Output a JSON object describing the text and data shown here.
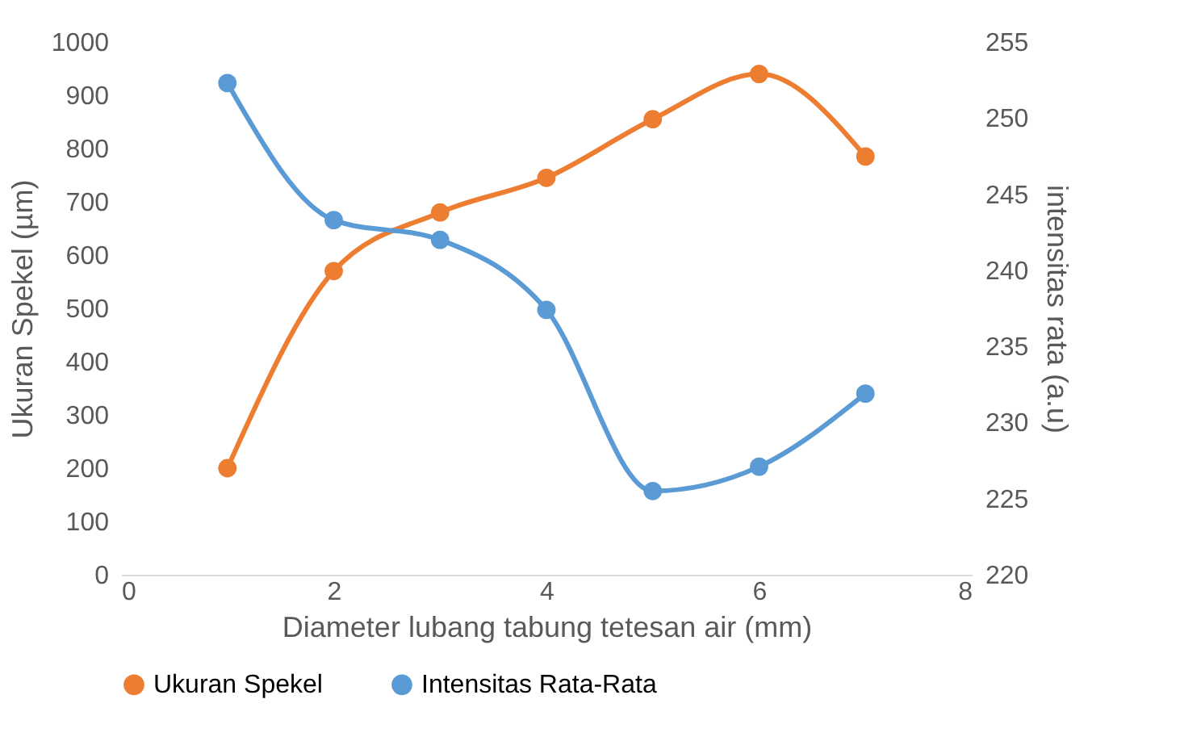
{
  "chart_data": {
    "type": "line",
    "xlabel": "Diameter lubang tabung tetesan air (mm)",
    "ylabel": "Ukuran Spekel (µm)",
    "y2label": "intensitas rata (a.u)",
    "x": [
      1,
      2,
      3,
      4,
      5,
      6,
      7
    ],
    "series": [
      {
        "name": "Ukuran Spekel",
        "color": "#ed7d31",
        "values": [
          200,
          570,
          680,
          745,
          855,
          940,
          785
        ]
      },
      {
        "name": "Intensitas Rata-Rata",
        "color": "#5b9bd5",
        "axis": "y2",
        "values": [
          252.3,
          243.3,
          242.0,
          237.4,
          225.5,
          227.1,
          231.9
        ]
      }
    ],
    "xlim": [
      0,
      8
    ],
    "xticks": [
      0,
      2,
      4,
      6,
      8
    ],
    "ylim": [
      0,
      1000
    ],
    "yticks": [
      0,
      100,
      200,
      300,
      400,
      500,
      600,
      700,
      800,
      900,
      1000
    ],
    "y2lim": [
      220,
      255
    ],
    "y2ticks": [
      220,
      225,
      230,
      235,
      240,
      245,
      250,
      255
    ],
    "grid": false,
    "legend": "bottom",
    "marker": "circle",
    "line_style": "solid"
  }
}
